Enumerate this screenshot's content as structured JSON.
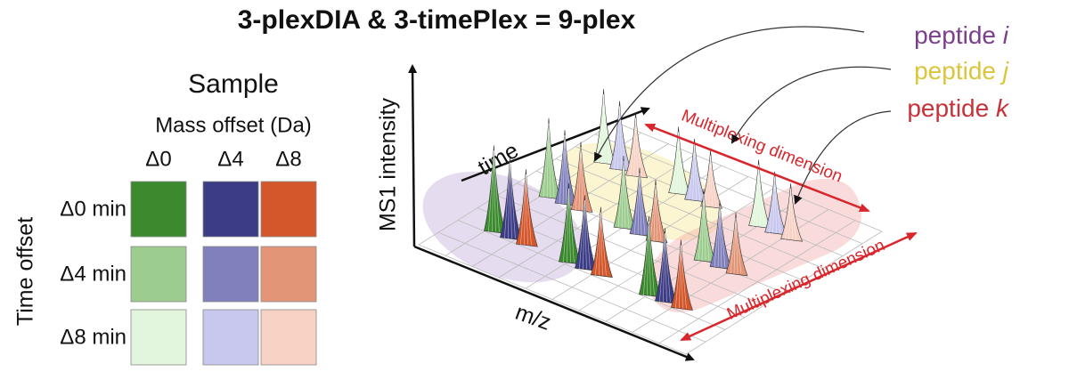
{
  "title": "3-plexDIA & 3-timePlex = 9-plex",
  "sample_panel": {
    "title": "Sample",
    "column_header": "Mass offset (Da)",
    "columns": [
      "Δ0",
      "Δ4",
      "Δ8"
    ],
    "rows": [
      "Δ0 min",
      "Δ4 min",
      "Δ8 min"
    ],
    "row_header": "Time offset"
  },
  "plot": {
    "y_axis": "MS1 intensity",
    "time_axis": "time",
    "x_axis": "m/z",
    "dimensions": [
      "Multiplexing dimension",
      "Multiplexing dimension"
    ]
  },
  "peptides": [
    {
      "label": "peptide",
      "letter": "i",
      "color": "#7b3f8e"
    },
    {
      "label": "peptide",
      "letter": "j",
      "color": "#d9c63c"
    },
    {
      "label": "peptide",
      "letter": "k",
      "color": "#c7323a"
    }
  ]
}
